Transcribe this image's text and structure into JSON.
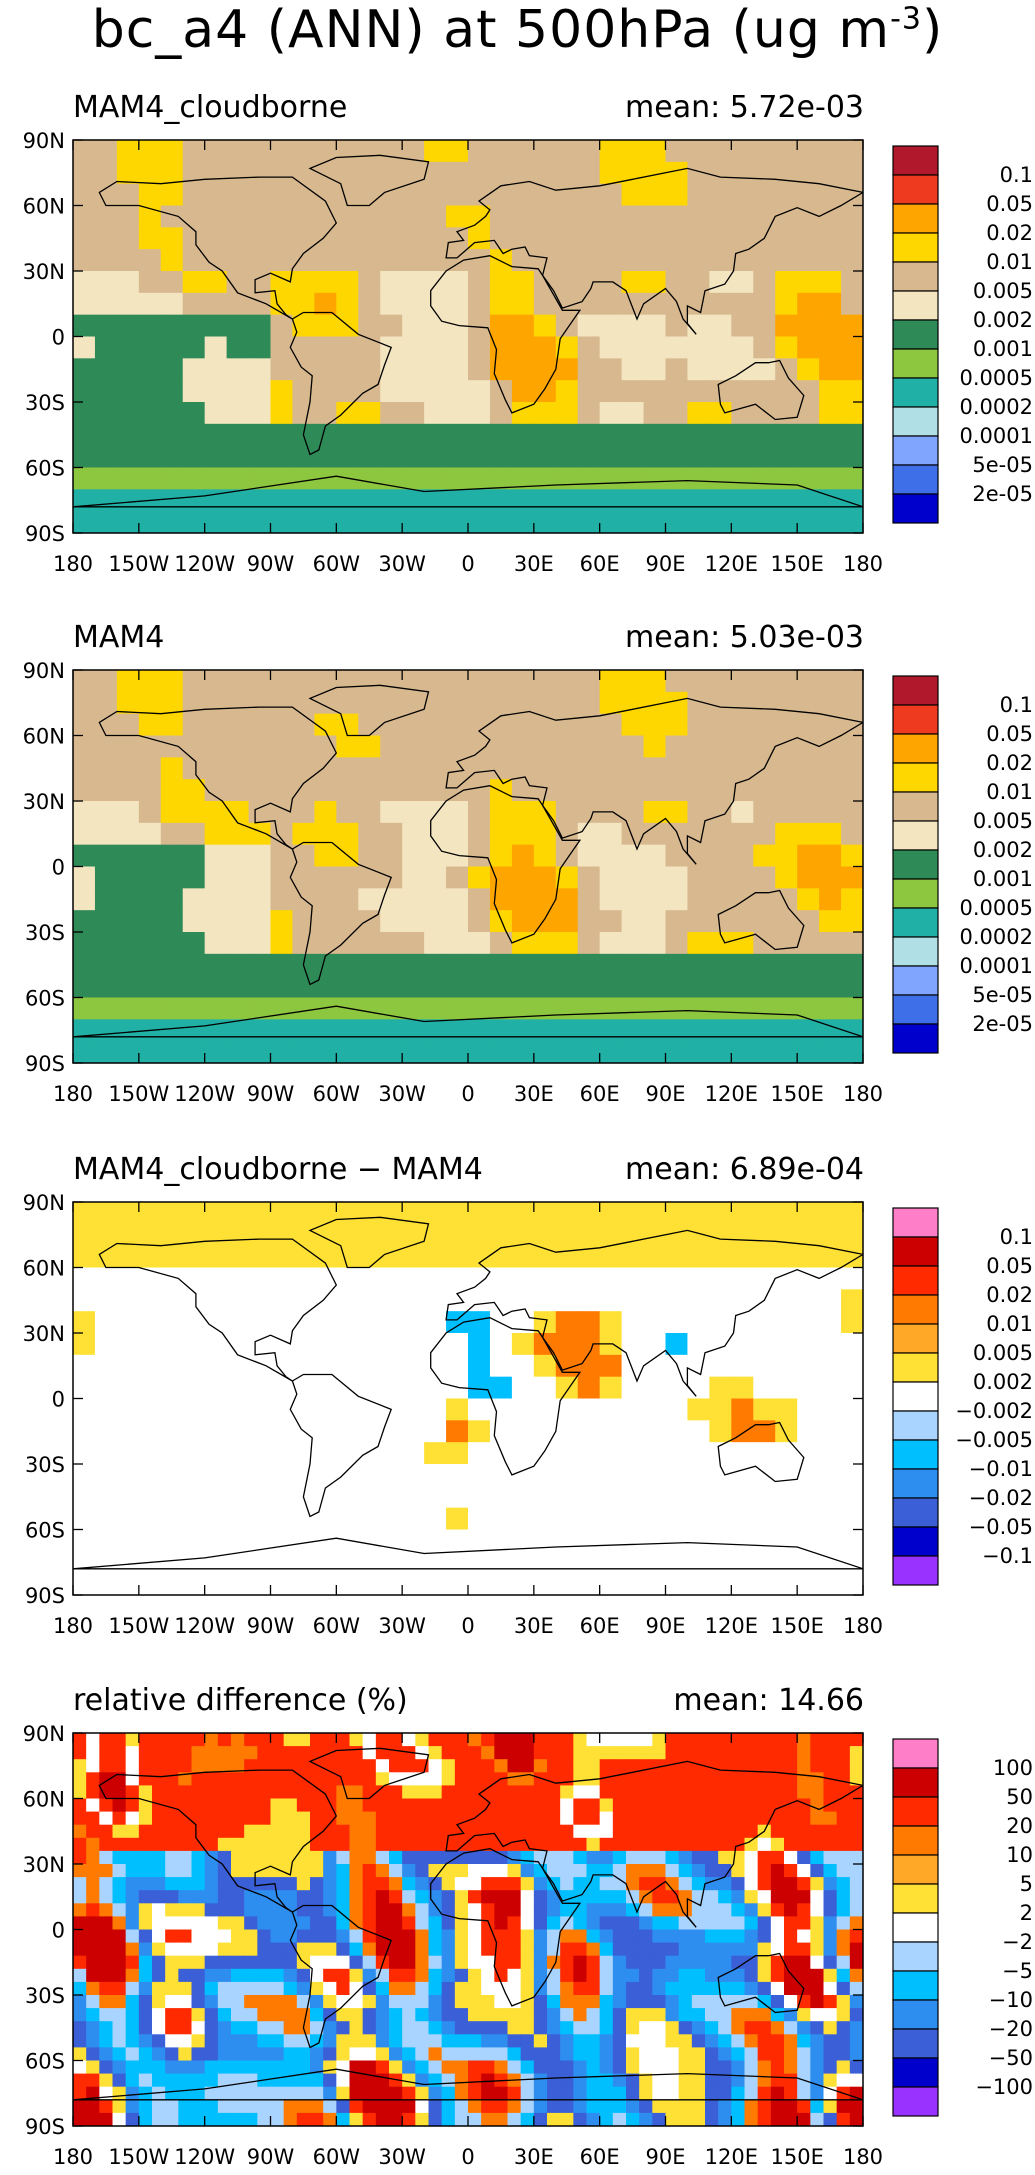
{
  "figure": {
    "title": "bc_a4 (ANN) at 500hPa (ug m",
    "title_exponent": "-3",
    "title_close": ")"
  },
  "lat_labels": [
    "90N",
    "60N",
    "30N",
    "0",
    "30S",
    "60S",
    "90S"
  ],
  "lon_labels": [
    "180",
    "150W",
    "120W",
    "90W",
    "60W",
    "30W",
    "0",
    "30E",
    "60E",
    "90E",
    "120E",
    "150E",
    "180"
  ],
  "panels": [
    {
      "name": "MAM4_cloudborne",
      "mean": "mean: 5.72e-03",
      "colorbar": {
        "labels": [
          "0.1",
          "0.05",
          "0.02",
          "0.01",
          "0.005",
          "0.002",
          "0.001",
          "0.0005",
          "0.0002",
          "0.0001",
          "5e-05",
          "2e-05"
        ],
        "colors": [
          "#b2182b",
          "#ee3a1e",
          "#ffa500",
          "#ffd700",
          "#d8b98f",
          "#f3e5c0",
          "#2e8b57",
          "#8dc63f",
          "#21b0a5",
          "#b0e0e6",
          "#7fa5ff",
          "#3f6fe8",
          "#0000cd"
        ]
      }
    },
    {
      "name": "MAM4",
      "mean": "mean: 5.03e-03",
      "colorbar": {
        "labels": [
          "0.1",
          "0.05",
          "0.02",
          "0.01",
          "0.005",
          "0.002",
          "0.001",
          "0.0005",
          "0.0002",
          "0.0001",
          "5e-05",
          "2e-05"
        ],
        "colors": [
          "#b2182b",
          "#ee3a1e",
          "#ffa500",
          "#ffd700",
          "#d8b98f",
          "#f3e5c0",
          "#2e8b57",
          "#8dc63f",
          "#21b0a5",
          "#b0e0e6",
          "#7fa5ff",
          "#3f6fe8",
          "#0000cd"
        ]
      }
    },
    {
      "name": "MAM4_cloudborne − MAM4",
      "mean": "mean: 6.89e-04",
      "colorbar": {
        "labels": [
          "0.1",
          "0.05",
          "0.02",
          "0.01",
          "0.005",
          "0.002",
          "−0.002",
          "−0.005",
          "−0.01",
          "−0.02",
          "−0.05",
          "−0.1"
        ],
        "colors": [
          "#ff7ec8",
          "#cc0000",
          "#ff2a00",
          "#ff7a00",
          "#ffa726",
          "#ffe135",
          "#ffffff",
          "#a8d4ff",
          "#00bfff",
          "#2e8ef0",
          "#3b5fd6",
          "#0000cd",
          "#9a32ff"
        ]
      }
    },
    {
      "name": "relative difference (%)",
      "mean": "mean: 14.66",
      "colorbar": {
        "labels": [
          "100",
          "50",
          "20",
          "10",
          "5",
          "2",
          "−2",
          "−5",
          "−10",
          "−20",
          "−50",
          "−100"
        ],
        "colors": [
          "#ff7ec8",
          "#cc0000",
          "#ff2a00",
          "#ff7a00",
          "#ffa726",
          "#ffe135",
          "#ffffff",
          "#a8d4ff",
          "#00bfff",
          "#2e8ef0",
          "#3b5fd6",
          "#0000cd",
          "#9a32ff"
        ]
      }
    }
  ]
}
